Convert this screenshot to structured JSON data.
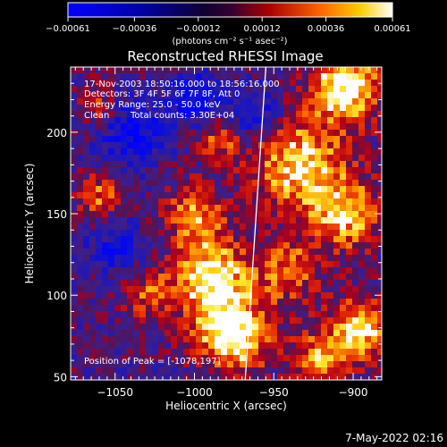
{
  "chart_data": {
    "type": "heatmap",
    "title": "Reconstructed RHESSI Image",
    "xlabel": "Heliocentric X (arcsec)",
    "ylabel": "Heliocentric Y (arcsec)",
    "xlim": [
      -1078,
      -882
    ],
    "ylim": [
      48,
      240
    ],
    "x_ticks": [
      {
        "value": -1050,
        "label": "−1050"
      },
      {
        "value": -1000,
        "label": "−1000"
      },
      {
        "value": -950,
        "label": "−950"
      },
      {
        "value": -900,
        "label": "−900"
      }
    ],
    "y_ticks": [
      {
        "value": 50,
        "label": "50"
      },
      {
        "value": 100,
        "label": "100"
      },
      {
        "value": 150,
        "label": "150"
      },
      {
        "value": 200,
        "label": "200"
      }
    ],
    "colorbar": {
      "min": -0.00061,
      "max": 0.00061,
      "ticks": [
        {
          "value": -0.00061,
          "label": "−0.00061"
        },
        {
          "value": -0.00036,
          "label": "−0.00036"
        },
        {
          "value": -0.00012,
          "label": "−0.00012"
        },
        {
          "value": 0.00012,
          "label": "0.00012"
        },
        {
          "value": 0.00036,
          "label": "0.00036"
        },
        {
          "value": 0.00061,
          "label": "0.00061"
        }
      ],
      "unit_label": "(photons cm⁻² s⁻¹ asec⁻²)"
    },
    "annotations": {
      "time_range": "17-Nov-2003 18:50:16.000 to 18:56:16.000",
      "detectors": "Detectors: 3F 4F 5F 6F 7F 8F, Att 0",
      "energy_range": "Energy Range: 25.0 - 50.0 keV",
      "clean": "Clean",
      "total_counts": "Total counts: 3.30E+04",
      "peak_position": "Position of Peak = [-1078,197]"
    },
    "limb_line": {
      "x": [
        -955,
        -968
      ],
      "y": [
        240,
        48
      ]
    },
    "colors": {
      "low": "#0000ff",
      "mid_low": "#000066",
      "mid": "#330033",
      "mid_high": "#cc0000",
      "high": "#ffff00",
      "peak": "#ffffff"
    }
  },
  "footer": {
    "timestamp": "7-May-2022 02:16"
  }
}
